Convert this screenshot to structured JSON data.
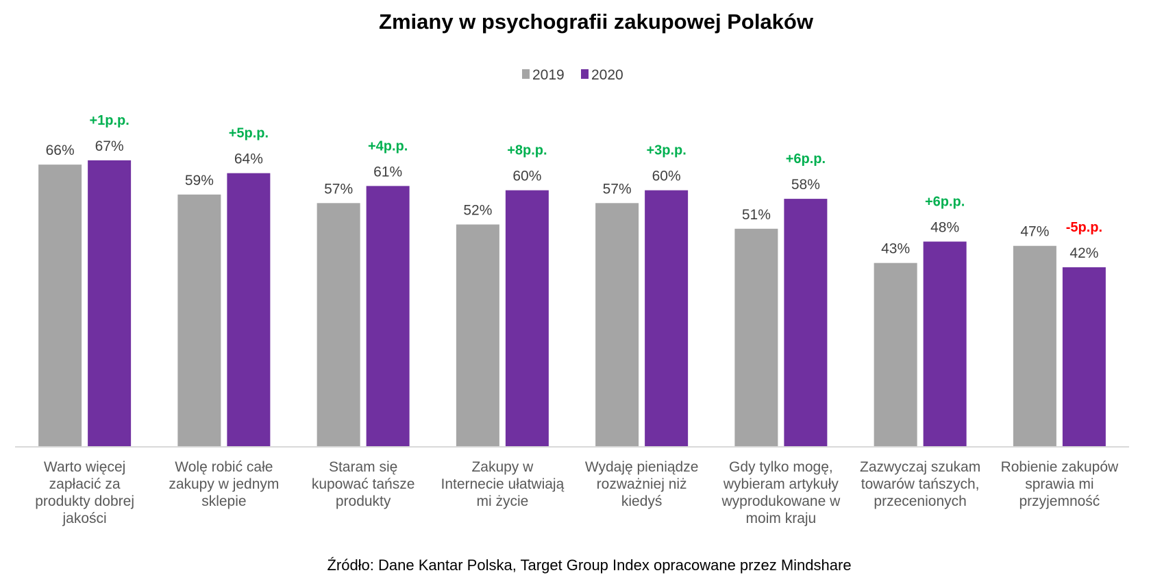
{
  "chart_data": {
    "type": "bar",
    "title": "Zmiany w psychografii zakupowej Polaków",
    "xlabel": "",
    "ylabel": "",
    "ylim": [
      0,
      100
    ],
    "grid": false,
    "legend": "top-center",
    "categories": [
      [
        "Warto więcej",
        "zapłacić za",
        "produkty dobrej",
        "jakości"
      ],
      [
        "Wolę robić całe",
        "zakupy w jednym",
        "sklepie"
      ],
      [
        "Staram się",
        "kupować tańsze",
        "produkty"
      ],
      [
        "Zakupy w",
        "Internecie ułatwiają",
        "mi życie"
      ],
      [
        "Wydaję pieniądze",
        "rozważniej niż",
        "kiedyś"
      ],
      [
        "Gdy tylko mogę,",
        "wybieram artykuły",
        "wyprodukowane w",
        "moim kraju"
      ],
      [
        "Zazwyczaj szukam",
        "towarów tańszych,",
        "przecenionych"
      ],
      [
        "Robienie zakupów",
        "sprawia mi",
        "przyjemność"
      ]
    ],
    "series": [
      {
        "name": "2019",
        "color": "#A5A5A5",
        "values": [
          66,
          59,
          57,
          52,
          57,
          51,
          43,
          47
        ],
        "labels": [
          "66%",
          "59%",
          "57%",
          "52%",
          "57%",
          "51%",
          "43%",
          "47%"
        ]
      },
      {
        "name": "2020",
        "color": "#7030A0",
        "values": [
          67,
          64,
          61,
          60,
          60,
          58,
          48,
          42
        ],
        "labels": [
          "67%",
          "64%",
          "61%",
          "60%",
          "60%",
          "58%",
          "48%",
          "42%"
        ]
      }
    ],
    "annotations": [
      {
        "text": "+1p.p.",
        "color": "#00B050"
      },
      {
        "text": "+5p.p.",
        "color": "#00B050"
      },
      {
        "text": "+4p.p.",
        "color": "#00B050"
      },
      {
        "text": "+8p.p.",
        "color": "#00B050"
      },
      {
        "text": "+3p.p.",
        "color": "#00B050"
      },
      {
        "text": "+6p.p.",
        "color": "#00B050"
      },
      {
        "text": "+6p.p.",
        "color": "#00B050"
      },
      {
        "text": "-5p.p.",
        "color": "#FF0000"
      }
    ],
    "source": "Źródło: Dane Kantar Polska, Target Group Index opracowane przez Mindshare"
  }
}
